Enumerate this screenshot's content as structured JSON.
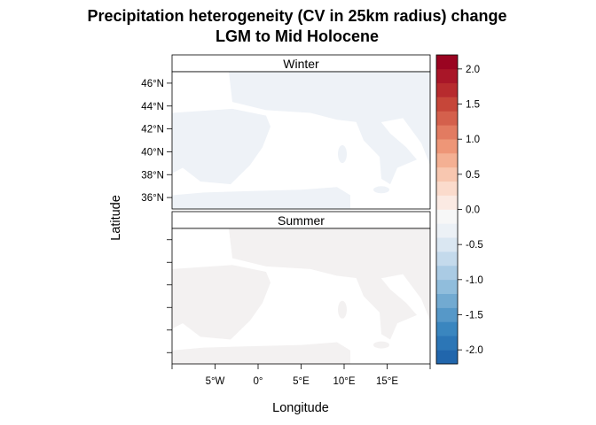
{
  "chart_data": {
    "type": "heatmap",
    "title_lines": [
      "Precipitation heterogeneity (CV in 25km radius) change",
      "LGM to Mid Holocene"
    ],
    "xlabel": "Longitude",
    "ylabel": "Latitude",
    "xlim": [
      -10,
      20
    ],
    "ylim": [
      35,
      47
    ],
    "x_ticks": [
      {
        "value": -5,
        "label": "5°W"
      },
      {
        "value": 0,
        "label": "0°"
      },
      {
        "value": 5,
        "label": "5°E"
      },
      {
        "value": 10,
        "label": "10°E"
      },
      {
        "value": 15,
        "label": "15°E"
      }
    ],
    "y_ticks": [
      {
        "value": 36,
        "label": "36°N"
      },
      {
        "value": 38,
        "label": "38°N"
      },
      {
        "value": 40,
        "label": "40°N"
      },
      {
        "value": 42,
        "label": "42°N"
      },
      {
        "value": 44,
        "label": "44°N"
      },
      {
        "value": 46,
        "label": "46°N"
      }
    ],
    "panels": [
      {
        "name": "Winter",
        "tint": "#eef2f7",
        "y_tick_labels": true
      },
      {
        "name": "Summer",
        "tint": "#f3f1f1",
        "y_tick_labels": false
      }
    ],
    "colorbar": {
      "range": [
        -2.2,
        2.2
      ],
      "step": 0.2,
      "ticks": [
        {
          "value": 2.0,
          "label": "2.0"
        },
        {
          "value": 1.5,
          "label": "1.5"
        },
        {
          "value": 1.0,
          "label": "1.0"
        },
        {
          "value": 0.5,
          "label": "0.5"
        },
        {
          "value": 0.0,
          "label": "0.0"
        },
        {
          "value": -0.5,
          "label": "-0.5"
        },
        {
          "value": -1.0,
          "label": "-1.0"
        },
        {
          "value": -1.5,
          "label": "-1.5"
        },
        {
          "value": -2.0,
          "label": "-2.0"
        }
      ],
      "colors": [
        "#2166ac",
        "#2c76b6",
        "#3a86bf",
        "#5698c8",
        "#72aad1",
        "#90bddc",
        "#aacbe4",
        "#c4daec",
        "#dae7f2",
        "#ecf1f6",
        "#f7f7f7",
        "#fbeae3",
        "#fbdbcc",
        "#f8c7b0",
        "#f4b093",
        "#ee9677",
        "#e27b61",
        "#d4604c",
        "#c64639",
        "#b72b2e",
        "#a91628",
        "#9a0421"
      ]
    },
    "grid": false,
    "legend": "right"
  }
}
